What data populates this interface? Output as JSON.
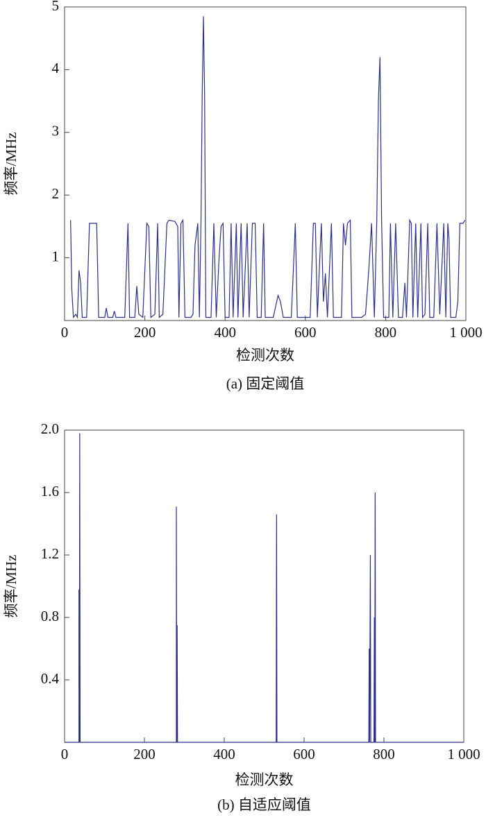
{
  "chart_data": [
    {
      "type": "line",
      "ylabel": "频率/MHz",
      "xlabel": "检测次数",
      "caption": "(a) 固定阈值",
      "color": "#2b2f8a",
      "xlim": [
        0,
        1000
      ],
      "ylim": [
        0,
        5
      ],
      "xticks": [
        0,
        200,
        400,
        600,
        800,
        {
          "value": 1000,
          "label": "1 000"
        }
      ],
      "yticks": [
        1,
        2,
        3,
        4,
        5
      ],
      "x": [
        15,
        18,
        22,
        28,
        32,
        36,
        40,
        44,
        55,
        62,
        80,
        85,
        100,
        104,
        108,
        120,
        124,
        128,
        150,
        158,
        162,
        175,
        180,
        185,
        195,
        205,
        210,
        215,
        225,
        232,
        236,
        245,
        255,
        260,
        275,
        282,
        285,
        290,
        295,
        300,
        315,
        320,
        325,
        332,
        336,
        340,
        343,
        346,
        349,
        352,
        365,
        372,
        378,
        385,
        390,
        395,
        400,
        410,
        415,
        420,
        428,
        432,
        440,
        445,
        455,
        460,
        468,
        475,
        480,
        490,
        496,
        500,
        510,
        520,
        532,
        538,
        545,
        565,
        575,
        580,
        600,
        612,
        620,
        625,
        630,
        636,
        640,
        645,
        650,
        655,
        665,
        670,
        690,
        695,
        700,
        705,
        712,
        716,
        740,
        750,
        758,
        765,
        772,
        778,
        782,
        786,
        790,
        795,
        808,
        812,
        818,
        825,
        832,
        842,
        848,
        852,
        860,
        864,
        868,
        875,
        880,
        888,
        892,
        898,
        905,
        910,
        920,
        928,
        935,
        945,
        950,
        955,
        958,
        962,
        975,
        980,
        985,
        993,
        998
      ],
      "values": [
        1.6,
        0.5,
        0.05,
        0.1,
        0.05,
        0.8,
        0.6,
        0.05,
        0.05,
        1.55,
        1.55,
        0.05,
        0.05,
        0.2,
        0.05,
        0.05,
        0.15,
        0.05,
        0.05,
        1.55,
        0.05,
        0.05,
        0.55,
        0.1,
        0.05,
        1.55,
        1.5,
        0.05,
        0.1,
        1.55,
        0.05,
        0.1,
        1.55,
        1.6,
        1.58,
        1.5,
        0.05,
        1.55,
        1.6,
        0.05,
        0.05,
        0.1,
        1.2,
        1.55,
        0.05,
        1.6,
        3.6,
        4.85,
        3.6,
        0.05,
        0.05,
        1.55,
        0.05,
        1.0,
        1.5,
        1.55,
        0.05,
        0.05,
        1.55,
        0.05,
        1.55,
        0.05,
        1.55,
        0.05,
        1.55,
        0.05,
        1.55,
        1.55,
        0.05,
        0.05,
        1.55,
        0.05,
        0.05,
        0.05,
        0.4,
        0.3,
        0.05,
        0.05,
        1.55,
        0.05,
        0.05,
        0.05,
        1.55,
        1.55,
        0.05,
        1.0,
        1.55,
        0.3,
        0.75,
        0.05,
        1.55,
        0.05,
        0.05,
        1.55,
        1.2,
        1.55,
        1.6,
        0.05,
        0.05,
        0.1,
        0.8,
        1.55,
        0.05,
        1.6,
        3.5,
        4.2,
        1.6,
        0.05,
        0.05,
        1.55,
        0.05,
        1.55,
        0.05,
        0.05,
        0.6,
        0.05,
        1.6,
        1.55,
        0.05,
        1.55,
        0.05,
        1.55,
        0.05,
        0.1,
        1.55,
        0.05,
        0.05,
        1.55,
        0.1,
        1.55,
        0.05,
        1.55,
        1.3,
        0.05,
        0.05,
        0.3,
        1.55,
        1.55,
        1.6
      ]
    },
    {
      "type": "line",
      "ylabel": "频率/MHz",
      "xlabel": "检测次数",
      "caption": "(b) 自适应阈值",
      "color": "#2b2f8a",
      "xlim": [
        0,
        1000
      ],
      "ylim": [
        0,
        2
      ],
      "xticks": [
        0,
        200,
        400,
        600,
        800,
        {
          "value": 1000,
          "label": "1 000"
        }
      ],
      "yticks": [
        0.4,
        0.8,
        1.2,
        1.6,
        {
          "value": 2,
          "label": "2.0"
        }
      ],
      "x": [
        0,
        36,
        36,
        37,
        38,
        39,
        280,
        280,
        281,
        282,
        283,
        530,
        531,
        532,
        762,
        763,
        764,
        766,
        767,
        775,
        776,
        777,
        778,
        779,
        1000
      ],
      "values": [
        0,
        0,
        0.98,
        0,
        1.98,
        0,
        0,
        1.51,
        0,
        0.75,
        0,
        0,
        1.46,
        0,
        0,
        0.6,
        0,
        1.2,
        0,
        0,
        0.8,
        0,
        1.6,
        0,
        0
      ]
    }
  ]
}
